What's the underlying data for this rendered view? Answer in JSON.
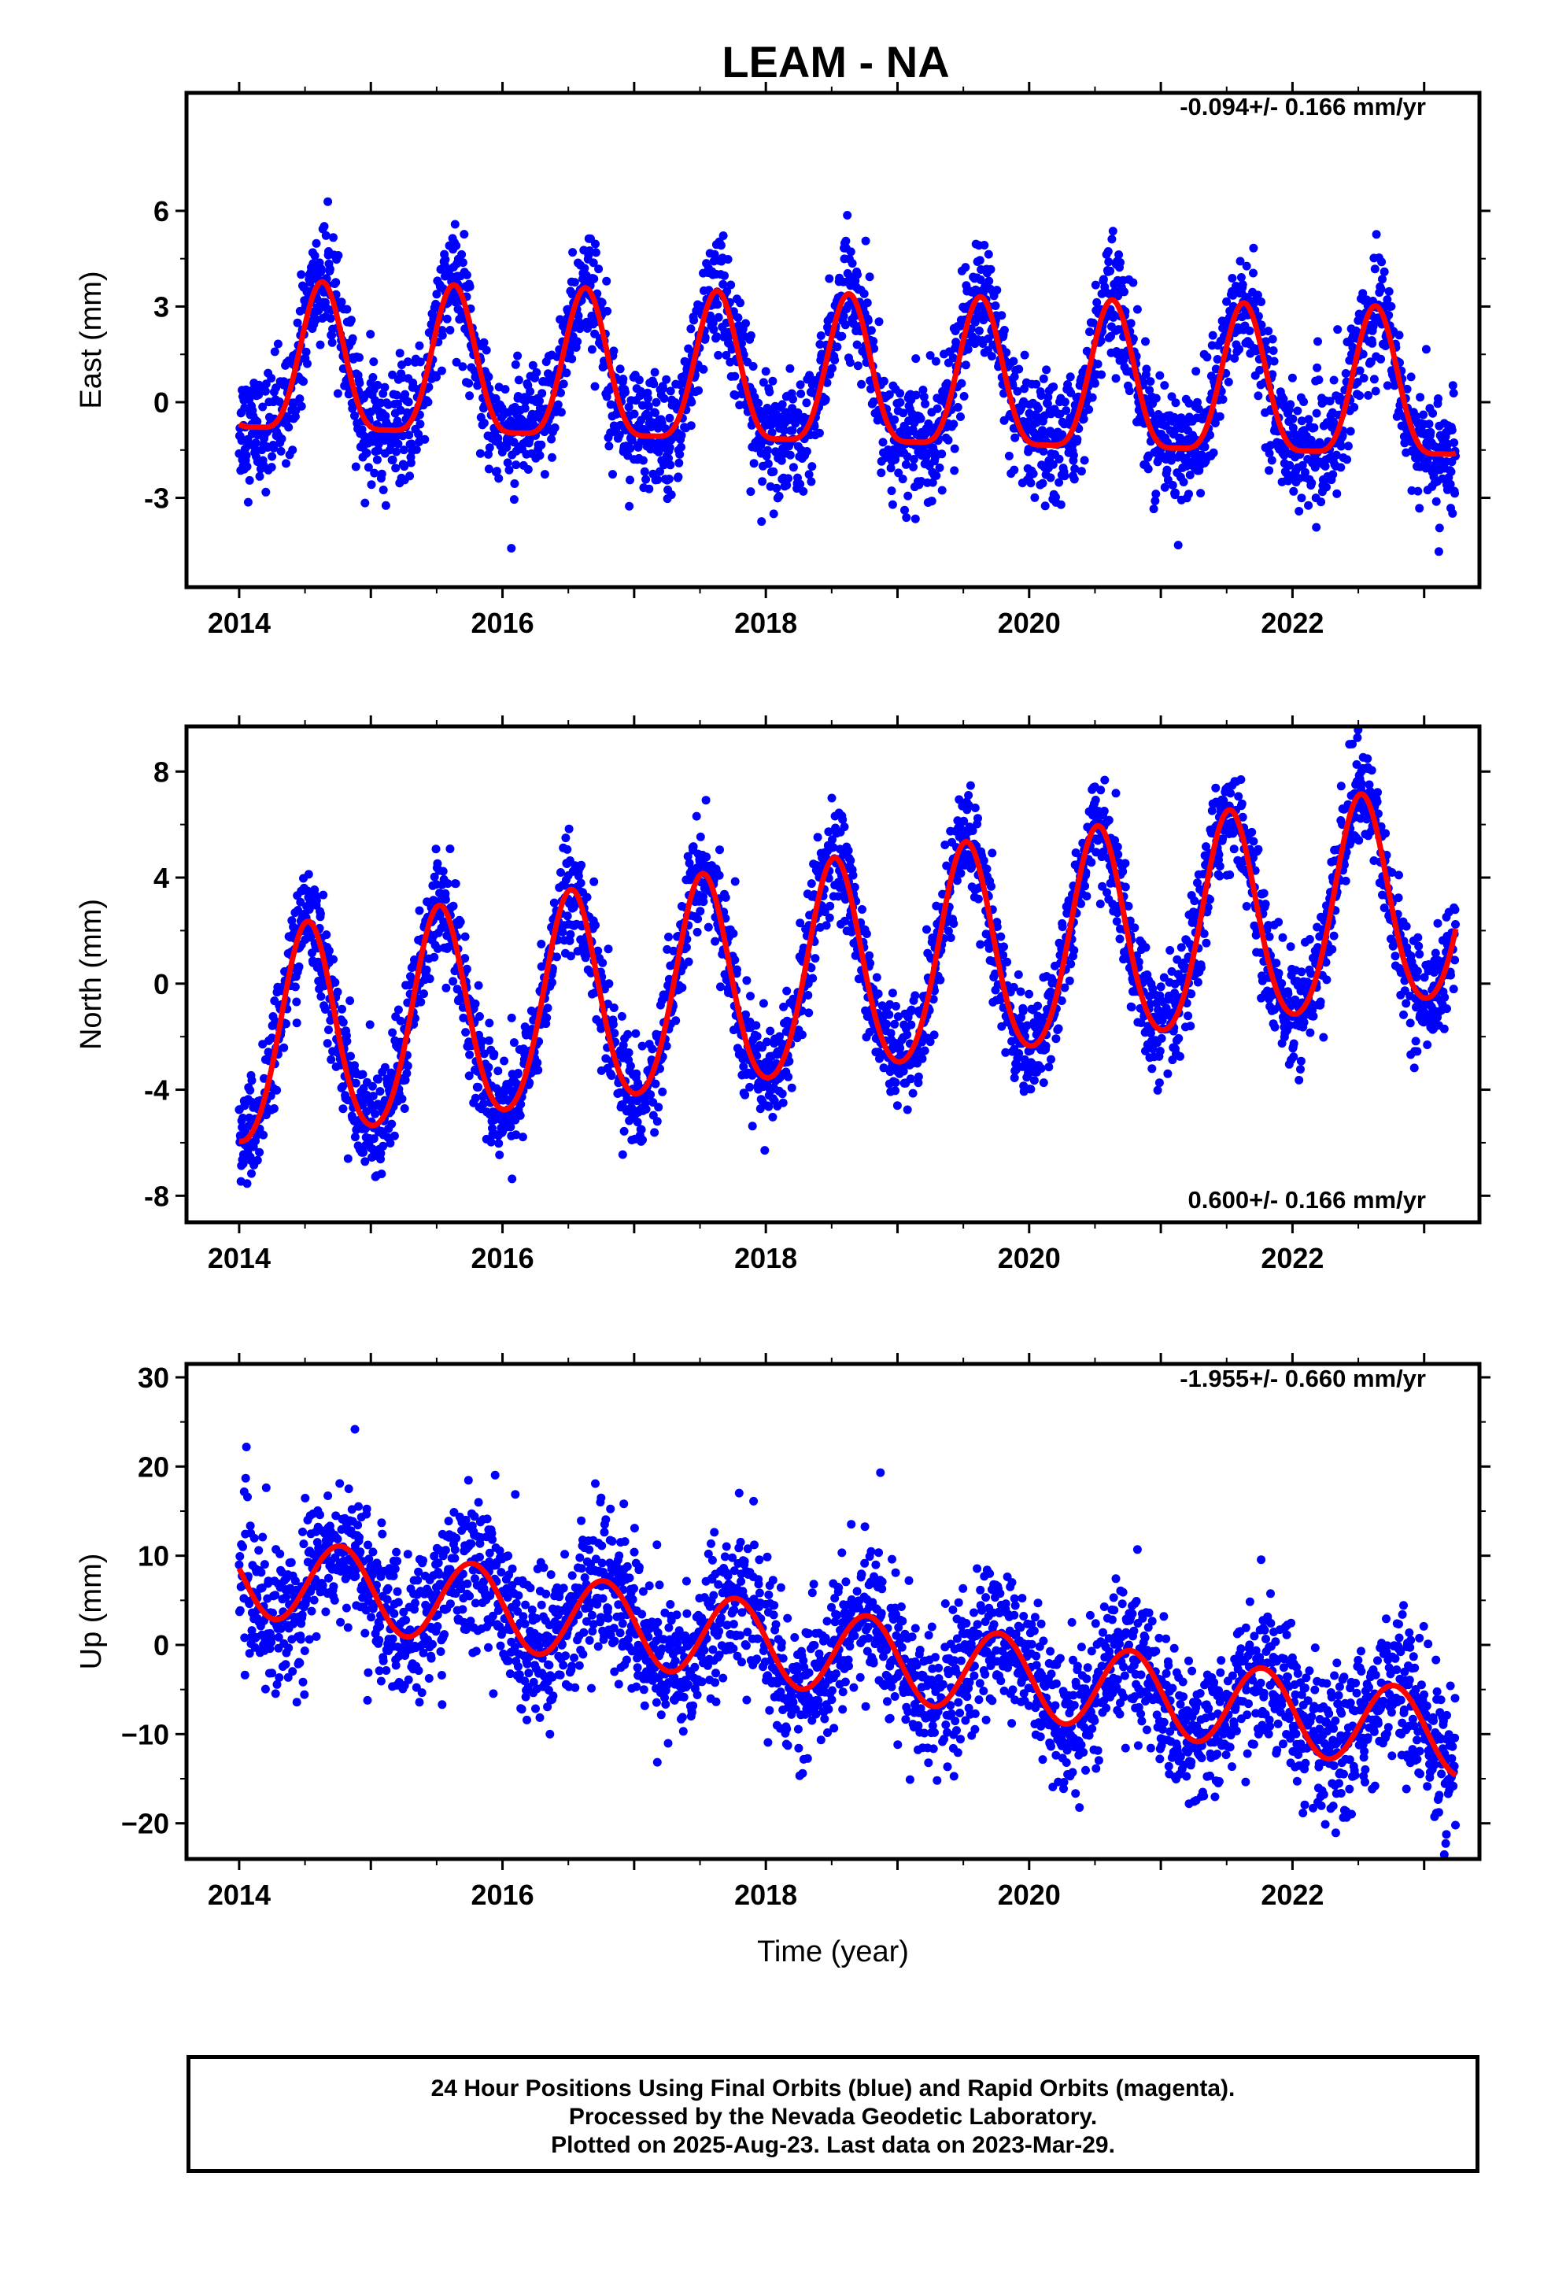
{
  "chart_data": [
    {
      "type": "scatter",
      "panel": "east",
      "title": "LEAM - NA",
      "ylabel": "East (mm)",
      "xlabel": "",
      "rate": "-0.094+/- 0.166 mm/yr",
      "xlim": [
        2013.6,
        2023.42
      ],
      "ylim": [
        -5.8,
        9.7
      ],
      "yticks": [
        -3,
        0,
        3,
        6
      ],
      "ytick_labels": [
        "-3",
        "0",
        "3",
        "6"
      ],
      "xticks": [
        2014,
        2016,
        2018,
        2020,
        2022
      ],
      "xtick_labels": [
        "2014",
        "2016",
        "2018",
        "2020",
        "2022"
      ],
      "x_start": 2014.0,
      "x_end": 2023.24,
      "trend": {
        "offset": 0.5,
        "slope": -0.094,
        "ref_year": 2018.6
      },
      "seasonal": {
        "annual_amp": 2.3,
        "annual_peak_phase": 0.63,
        "semiannual_amp": 0.6,
        "semiannual_peak_phase": 0.63
      },
      "scatter_sd": 0.9,
      "series": [
        {
          "name": "Final Orbits",
          "color": "#0000ff",
          "mark": "dot"
        },
        {
          "name": "",
          "color": "#ff0000",
          "mark": "line"
        }
      ],
      "grid": false
    },
    {
      "type": "scatter",
      "panel": "north",
      "title": "",
      "ylabel": "North (mm)",
      "xlabel": "",
      "rate": "0.600+/- 0.166 mm/yr",
      "xlim": [
        2013.6,
        2023.42
      ],
      "ylim": [
        -9.0,
        9.7
      ],
      "yticks": [
        -8,
        -4,
        0,
        4,
        8
      ],
      "ytick_labels": [
        "-8",
        "-4",
        "0",
        "4",
        "8"
      ],
      "xticks": [
        2014,
        2016,
        2018,
        2020,
        2022
      ],
      "xtick_labels": [
        "2014",
        "2016",
        "2018",
        "2020",
        "2022"
      ],
      "x_start": 2014.0,
      "x_end": 2023.24,
      "trend": {
        "offset": 0.4,
        "slope": 0.6,
        "ref_year": 2018.6
      },
      "seasonal": {
        "annual_amp": 4.0,
        "annual_peak_phase": 0.52,
        "semiannual_amp": 0.4,
        "semiannual_peak_phase": 0.52
      },
      "scatter_sd": 1.0,
      "series": [
        {
          "name": "Final Orbits",
          "color": "#0000ff",
          "mark": "dot"
        },
        {
          "name": "",
          "color": "#ff0000",
          "mark": "line"
        }
      ],
      "grid": false
    },
    {
      "type": "scatter",
      "panel": "up",
      "title": "",
      "ylabel": "Up (mm)",
      "xlabel": "Time (year)",
      "rate": "-1.955+/- 0.660 mm/yr",
      "xlim": [
        2013.6,
        2023.42
      ],
      "ylim": [
        -24.0,
        31.5
      ],
      "yticks": [
        -20,
        -10,
        0,
        10,
        20,
        30
      ],
      "ytick_labels": [
        "−20",
        "−10",
        "0",
        "10",
        "20",
        "30"
      ],
      "xticks": [
        2014,
        2016,
        2018,
        2020,
        2022
      ],
      "xtick_labels": [
        "2014",
        "2016",
        "2018",
        "2020",
        "2022"
      ],
      "x_start": 2014.0,
      "x_end": 2023.24,
      "trend": {
        "offset": -1.0,
        "slope": -1.955,
        "ref_year": 2018.6
      },
      "seasonal": {
        "annual_amp": 4.6,
        "annual_peak_phase": 0.77,
        "semiannual_amp": 0.0,
        "semiannual_peak_phase": 0.0
      },
      "scatter_sd": 4.0,
      "series": [
        {
          "name": "Final Orbits",
          "color": "#0000ff",
          "mark": "dot"
        },
        {
          "name": "",
          "color": "#ff0000",
          "mark": "line"
        }
      ],
      "grid": false
    }
  ],
  "footer": {
    "line1": "24 Hour Positions Using Final Orbits (blue) and Rapid Orbits (magenta).",
    "line2": "Processed by the Nevada Geodetic Laboratory.",
    "line3": "Plotted on 2025-Aug-23. Last data on 2023-Mar-29."
  }
}
